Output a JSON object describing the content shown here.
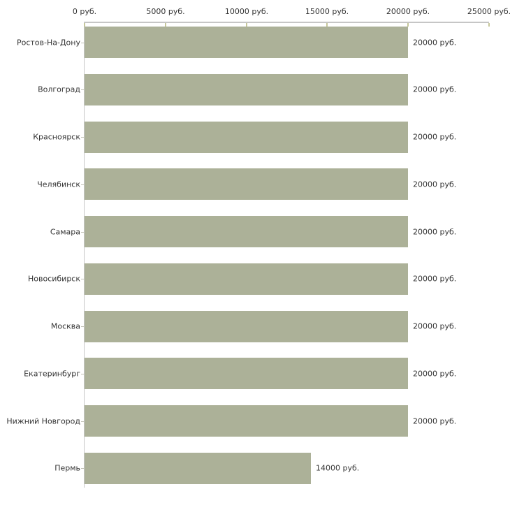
{
  "chart_data": {
    "type": "bar",
    "orientation": "horizontal",
    "title": "",
    "xlabel": "",
    "ylabel": "",
    "unit": "руб.",
    "categories": [
      "Ростов-На-Дону",
      "Волгоград",
      "Красноярск",
      "Челябинск",
      "Самара",
      "Новосибирск",
      "Москва",
      "Екатеринбург",
      "Нижний Новгород",
      "Пермь"
    ],
    "values": [
      20000,
      20000,
      20000,
      20000,
      20000,
      20000,
      20000,
      20000,
      20000,
      14000
    ],
    "value_labels": [
      "20000 руб.",
      "20000 руб.",
      "20000 руб.",
      "20000 руб.",
      "20000 руб.",
      "20000 руб.",
      "20000 руб.",
      "20000 руб.",
      "20000 руб.",
      "14000 руб."
    ],
    "x_axis": {
      "position": "top",
      "range": [
        0,
        25000
      ],
      "ticks": [
        0,
        5000,
        10000,
        15000,
        20000,
        25000
      ],
      "tick_labels": [
        "0 руб.",
        "5000 руб.",
        "10000 руб.",
        "15000 руб.",
        "20000 руб.",
        "25000 руб."
      ]
    },
    "grid": false,
    "legend": false,
    "colors": {
      "background": "#ffffff",
      "bar": "#acb198",
      "axis_line": "#c6c6c6",
      "axis_tick": "#c6c79b",
      "category_tick": "#c0c0b4",
      "text": "#333333"
    }
  }
}
